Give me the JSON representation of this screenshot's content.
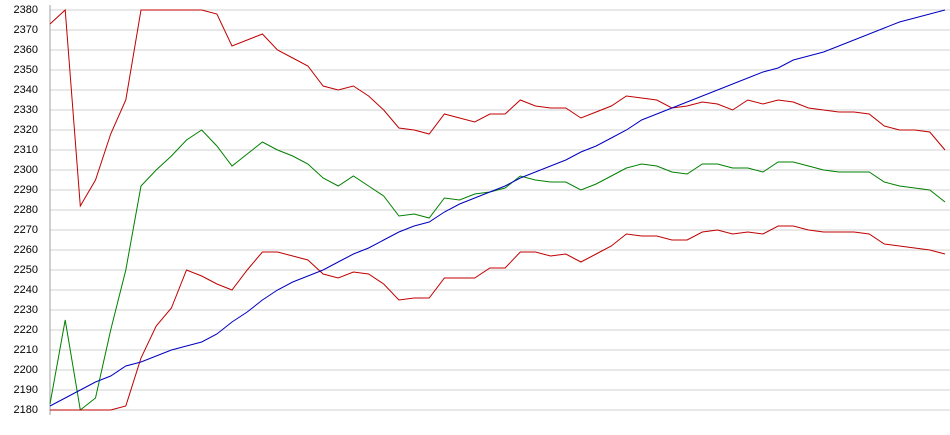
{
  "chart_data": {
    "type": "line",
    "categories": [
      null,
      null,
      null,
      null,
      null,
      null,
      null,
      null,
      null,
      null,
      null,
      null,
      null,
      null,
      null,
      null,
      null,
      null,
      null,
      null,
      null,
      null,
      null,
      null,
      null,
      null,
      null,
      null,
      null,
      null,
      null,
      null,
      null,
      null,
      null,
      null,
      null,
      null,
      null,
      null,
      null,
      null,
      null,
      null,
      null,
      null,
      null,
      null,
      null,
      null,
      null,
      null,
      null,
      null,
      null,
      null,
      null,
      null,
      null,
      null
    ],
    "series": [
      {
        "color": "#c00000",
        "values": [
          2373,
          2380,
          2282,
          2295,
          2318,
          2335,
          2380,
          2380,
          2380,
          2380,
          2380,
          2378,
          2362,
          2365,
          2368,
          2360,
          2356,
          2352,
          2342,
          2340,
          2342,
          2337,
          2330,
          2321,
          2320,
          2318,
          2328,
          2326,
          2324,
          2328,
          2328,
          2335,
          2332,
          2331,
          2331,
          2326,
          2329,
          2332,
          2337,
          2336,
          2335,
          2331,
          2332,
          2334,
          2333,
          2330,
          2335,
          2333,
          2335,
          2334,
          2331,
          2330,
          2329,
          2329,
          2328,
          2322,
          2320,
          2320,
          2319,
          2310
        ]
      },
      {
        "color": "#008000",
        "values": [
          2183,
          2225,
          2180,
          2186,
          2220,
          2250,
          2292,
          2300,
          2307,
          2315,
          2320,
          2312,
          2302,
          2308,
          2314,
          2310,
          2307,
          2303,
          2296,
          2292,
          2297,
          2292,
          2287,
          2277,
          2278,
          2276,
          2286,
          2285,
          2288,
          2289,
          2291,
          2297,
          2295,
          2294,
          2294,
          2290,
          2293,
          2297,
          2301,
          2303,
          2302,
          2299,
          2298,
          2303,
          2303,
          2301,
          2301,
          2299,
          2304,
          2304,
          2302,
          2300,
          2299,
          2299,
          2299,
          2294,
          2292,
          2291,
          2290,
          2284
        ]
      },
      {
        "color": "#c00000",
        "values": [
          2180,
          2180,
          2180,
          2180,
          2180,
          2182,
          2206,
          2222,
          2231,
          2250,
          2247,
          2243,
          2240,
          2250,
          2259,
          2259,
          2257,
          2255,
          2248,
          2246,
          2249,
          2248,
          2243,
          2235,
          2236,
          2236,
          2246,
          2246,
          2246,
          2251,
          2251,
          2259,
          2259,
          2257,
          2258,
          2254,
          2258,
          2262,
          2268,
          2267,
          2267,
          2265,
          2265,
          2269,
          2270,
          2268,
          2269,
          2268,
          2272,
          2272,
          2270,
          2269,
          2269,
          2269,
          2268,
          2263,
          2262,
          2261,
          2260,
          2258
        ]
      },
      {
        "color": "#0000c0",
        "values": [
          2182,
          2186,
          2190,
          2194,
          2197,
          2202,
          2204,
          2207,
          2210,
          2212,
          2214,
          2218,
          2224,
          2229,
          2235,
          2240,
          2244,
          2247,
          2250,
          2254,
          2258,
          2261,
          2265,
          2269,
          2272,
          2274,
          2279,
          2283,
          2286,
          2289,
          2292,
          2296,
          2299,
          2302,
          2305,
          2309,
          2312,
          2316,
          2320,
          2325,
          2328,
          2331,
          2334,
          2337,
          2340,
          2343,
          2346,
          2349,
          2351,
          2355,
          2357,
          2359,
          2362,
          2365,
          2368,
          2371,
          2374,
          2376,
          2378,
          2380
        ]
      }
    ],
    "ylim": [
      2180,
      2380
    ],
    "yticks": [
      2180,
      2190,
      2200,
      2210,
      2220,
      2230,
      2240,
      2250,
      2260,
      2270,
      2280,
      2290,
      2300,
      2310,
      2320,
      2330,
      2340,
      2350,
      2360,
      2370,
      2380
    ],
    "grid": true
  }
}
